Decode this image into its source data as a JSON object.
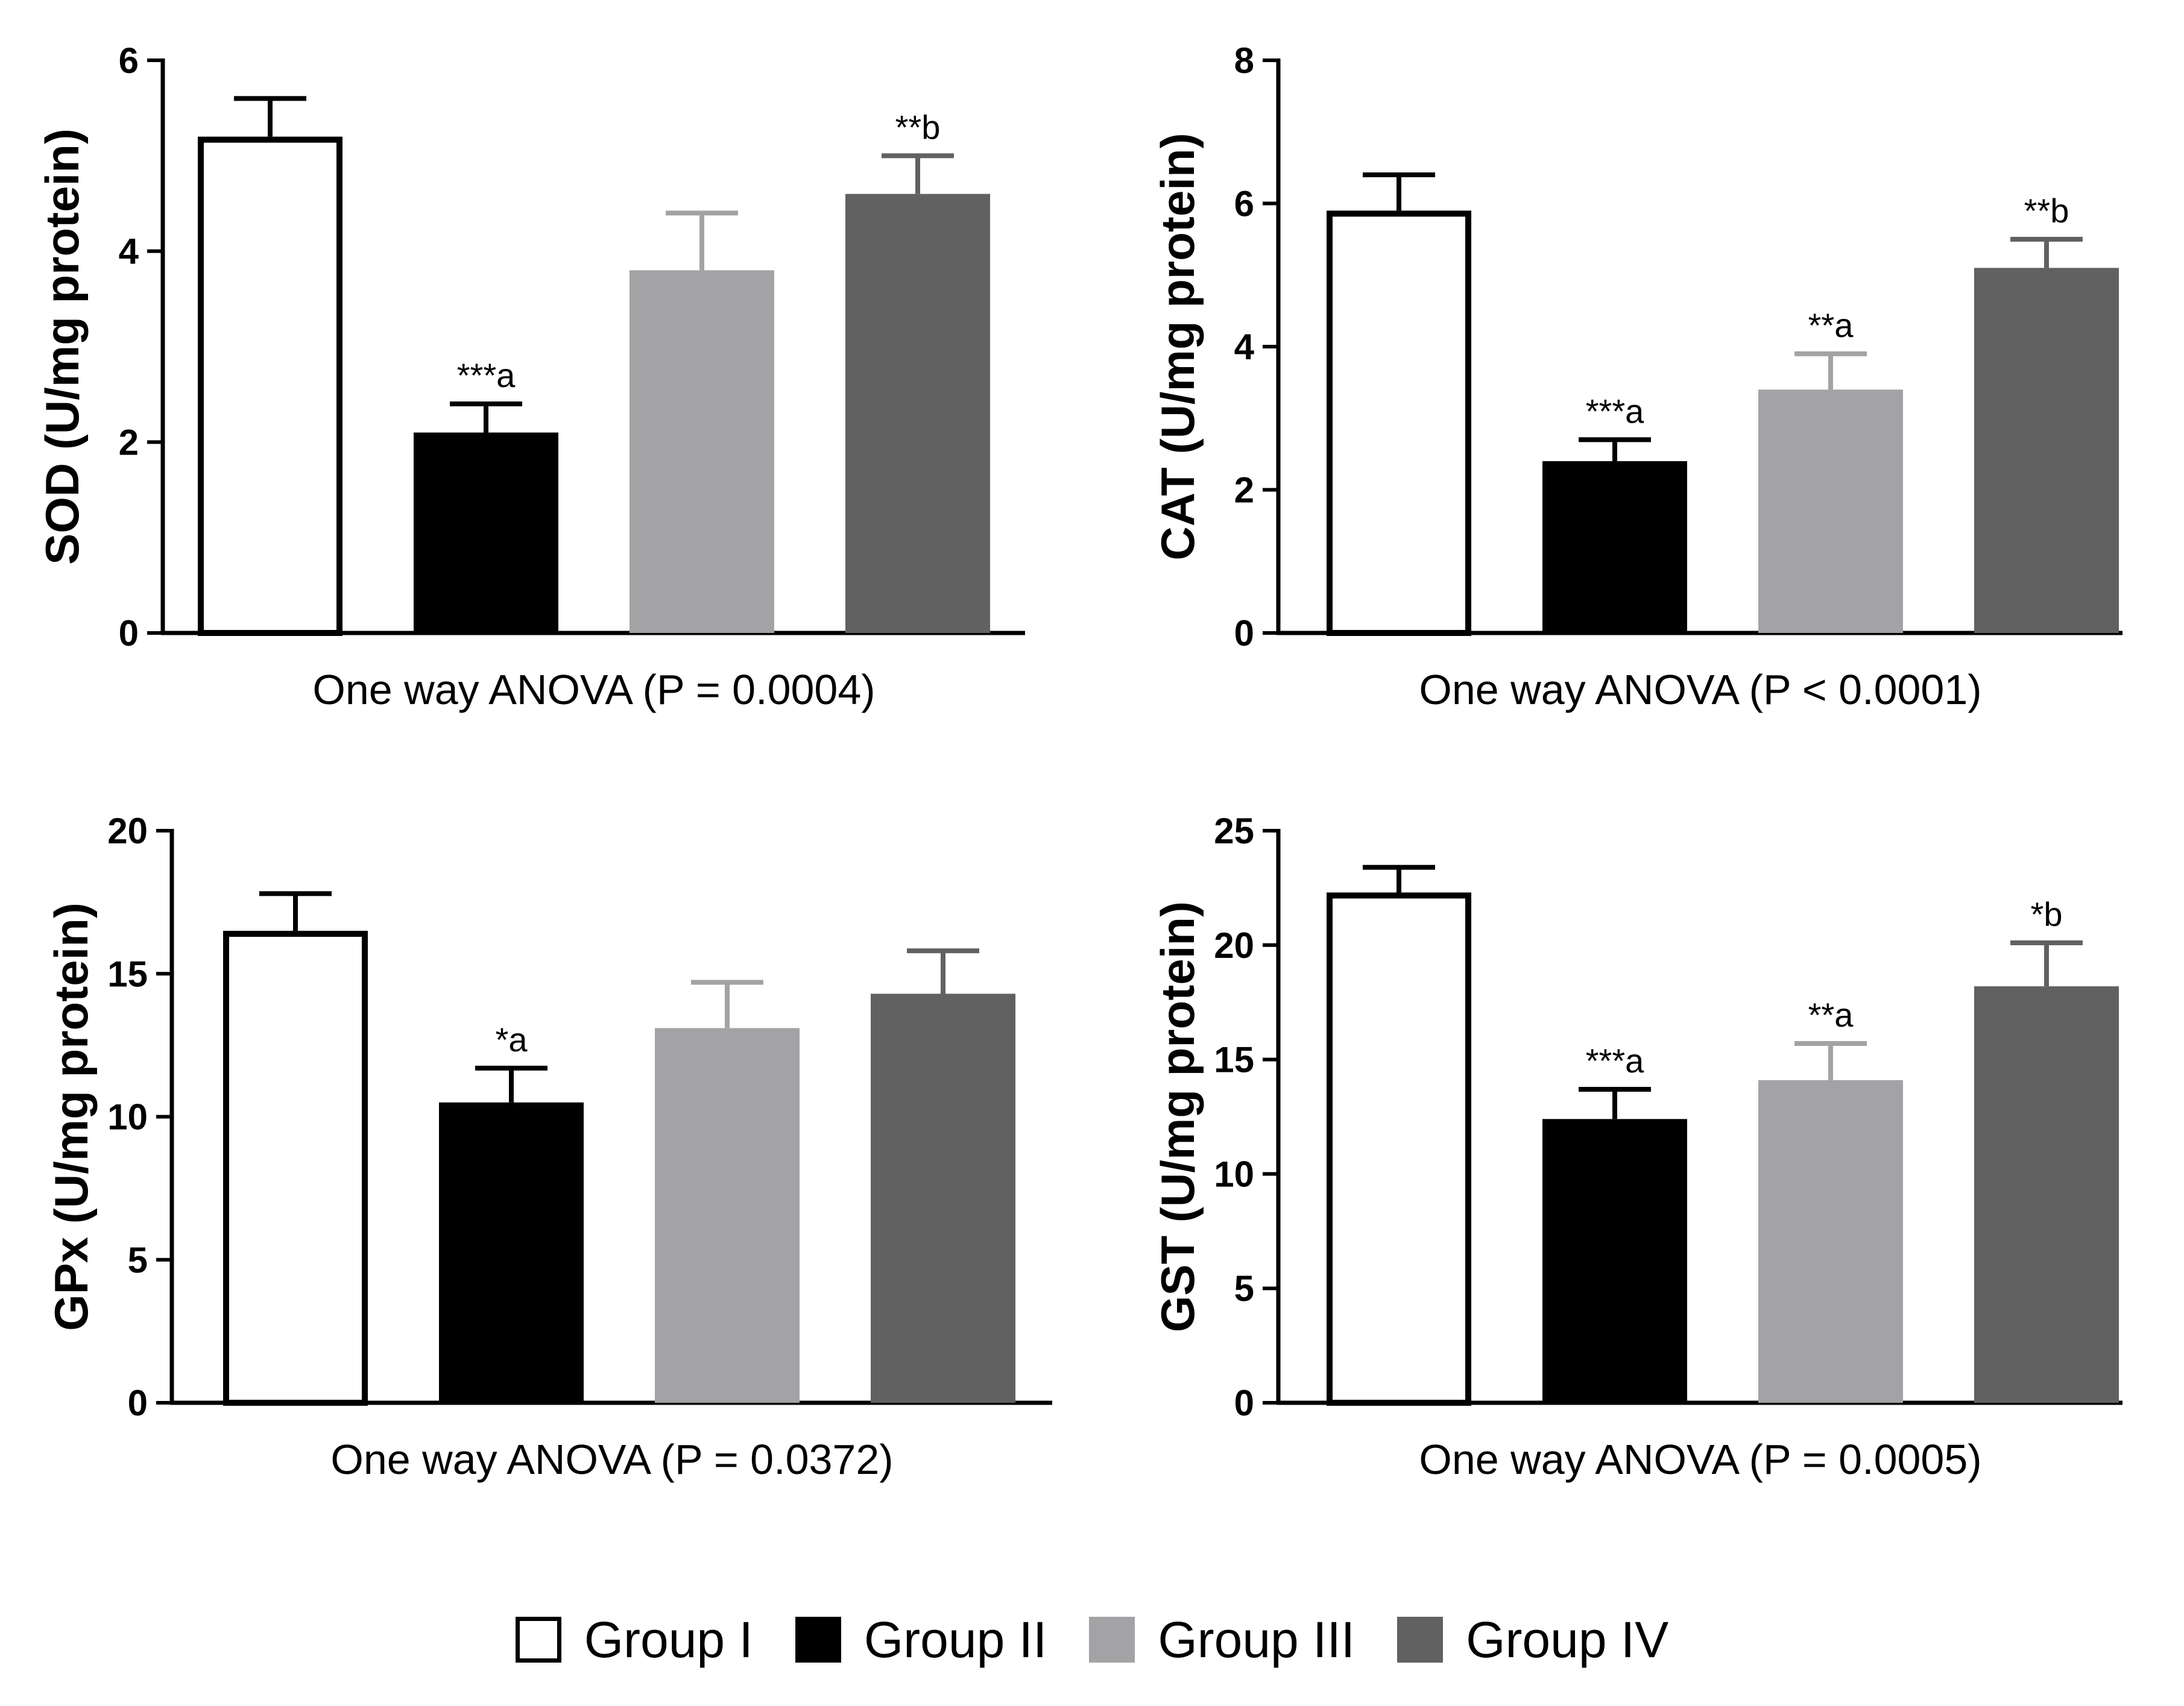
{
  "groups": [
    {
      "name": "Group I",
      "color": "#ffffff",
      "outline": "#000000"
    },
    {
      "name": "Group II",
      "color": "#000000",
      "outline": "#000000"
    },
    {
      "name": "Group III",
      "color": "#a3a3a6",
      "outline": "#a3a3a6"
    },
    {
      "name": "Group IV",
      "color": "#616161",
      "outline": "#616161"
    }
  ],
  "chart_data": [
    {
      "type": "bar",
      "ylabel": "SOD (U/mg protein)",
      "xlabel": "One way ANOVA (P = 0.0004)",
      "categories": [
        "Group I",
        "Group II",
        "Group III",
        "Group IV"
      ],
      "values": [
        5.2,
        2.1,
        3.8,
        4.6
      ],
      "error_upper": [
        0.4,
        0.3,
        0.6,
        0.4
      ],
      "annotations": [
        "",
        "***a",
        "",
        "**b"
      ],
      "ylim": [
        0,
        6
      ],
      "yticks": [
        "0",
        "2",
        "4",
        "6"
      ],
      "ytick_values": [
        0,
        2,
        4,
        6
      ]
    },
    {
      "type": "bar",
      "ylabel": "CAT (U/mg protein)",
      "xlabel": "One way ANOVA (P < 0.0001)",
      "categories": [
        "Group I",
        "Group II",
        "Group III",
        "Group IV"
      ],
      "values": [
        5.9,
        2.4,
        3.4,
        5.1
      ],
      "error_upper": [
        0.5,
        0.3,
        0.5,
        0.4
      ],
      "annotations": [
        "",
        "***a",
        "**a",
        "**b"
      ],
      "ylim": [
        0,
        8
      ],
      "yticks": [
        "0",
        "2",
        "4",
        "6",
        "8"
      ],
      "ytick_values": [
        0,
        2,
        4,
        6,
        8
      ]
    },
    {
      "type": "bar",
      "ylabel": "GPx (U/mg protein)",
      "xlabel": "One way ANOVA (P = 0.0372)",
      "categories": [
        "Group I",
        "Group II",
        "Group III",
        "Group IV"
      ],
      "values": [
        16.5,
        10.5,
        13.1,
        14.3
      ],
      "error_upper": [
        1.3,
        1.2,
        1.6,
        1.5
      ],
      "annotations": [
        "",
        "*a",
        "",
        ""
      ],
      "ylim": [
        0,
        20
      ],
      "yticks": [
        "0",
        "5",
        "10",
        "15",
        "20"
      ],
      "ytick_values": [
        0,
        5,
        10,
        15,
        20
      ]
    },
    {
      "type": "bar",
      "ylabel": "GST (U/mg protein)",
      "xlabel": "One way ANOVA (P = 0.0005)",
      "categories": [
        "Group I",
        "Group II",
        "Group III",
        "Group IV"
      ],
      "values": [
        22.3,
        12.4,
        14.1,
        18.2
      ],
      "error_upper": [
        1.1,
        1.3,
        1.6,
        1.9
      ],
      "annotations": [
        "",
        "***a",
        "**a",
        "*b"
      ],
      "ylim": [
        0,
        25
      ],
      "yticks": [
        "0",
        "5",
        "10",
        "15",
        "20",
        "25"
      ],
      "ytick_values": [
        0,
        5,
        10,
        15,
        20,
        25
      ]
    }
  ]
}
